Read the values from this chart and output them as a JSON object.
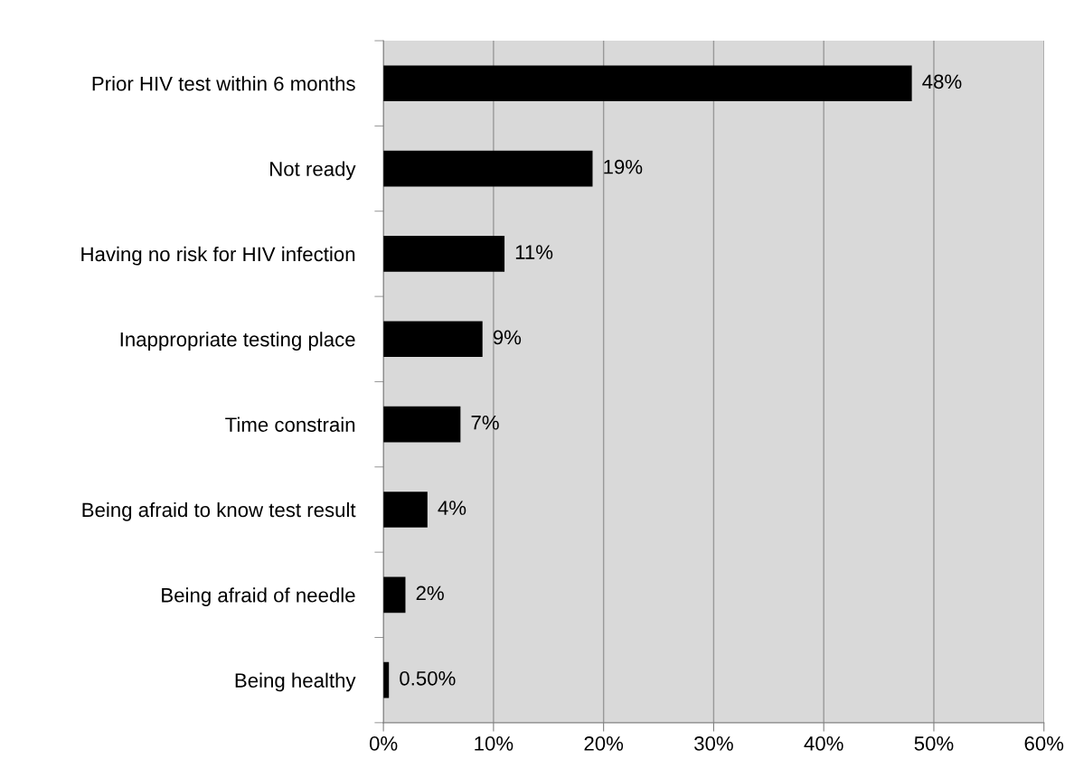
{
  "chart_data": {
    "type": "bar",
    "orientation": "horizontal",
    "categories": [
      "Prior HIV test within 6 months",
      "Not ready",
      "Having no risk for HIV infection",
      "Inappropriate testing place",
      "Time constrain",
      "Being afraid to know test result",
      "Being afraid of needle",
      "Being healthy"
    ],
    "values": [
      48,
      19,
      11,
      9,
      7,
      4,
      2,
      0.5
    ],
    "value_labels": [
      "48%",
      "19%",
      "11%",
      "9%",
      "7%",
      "4%",
      "2%",
      "0.50%"
    ],
    "color": "#000000",
    "xlim": [
      0,
      60
    ],
    "xticks": [
      {
        "value": 0,
        "label": "0%"
      },
      {
        "value": 10,
        "label": "10%"
      },
      {
        "value": 20,
        "label": "20%"
      },
      {
        "value": 30,
        "label": "30%"
      },
      {
        "value": 40,
        "label": "40%"
      },
      {
        "value": 50,
        "label": "50%"
      },
      {
        "value": 60,
        "label": "60%"
      }
    ],
    "grid": "x",
    "legend": false
  }
}
